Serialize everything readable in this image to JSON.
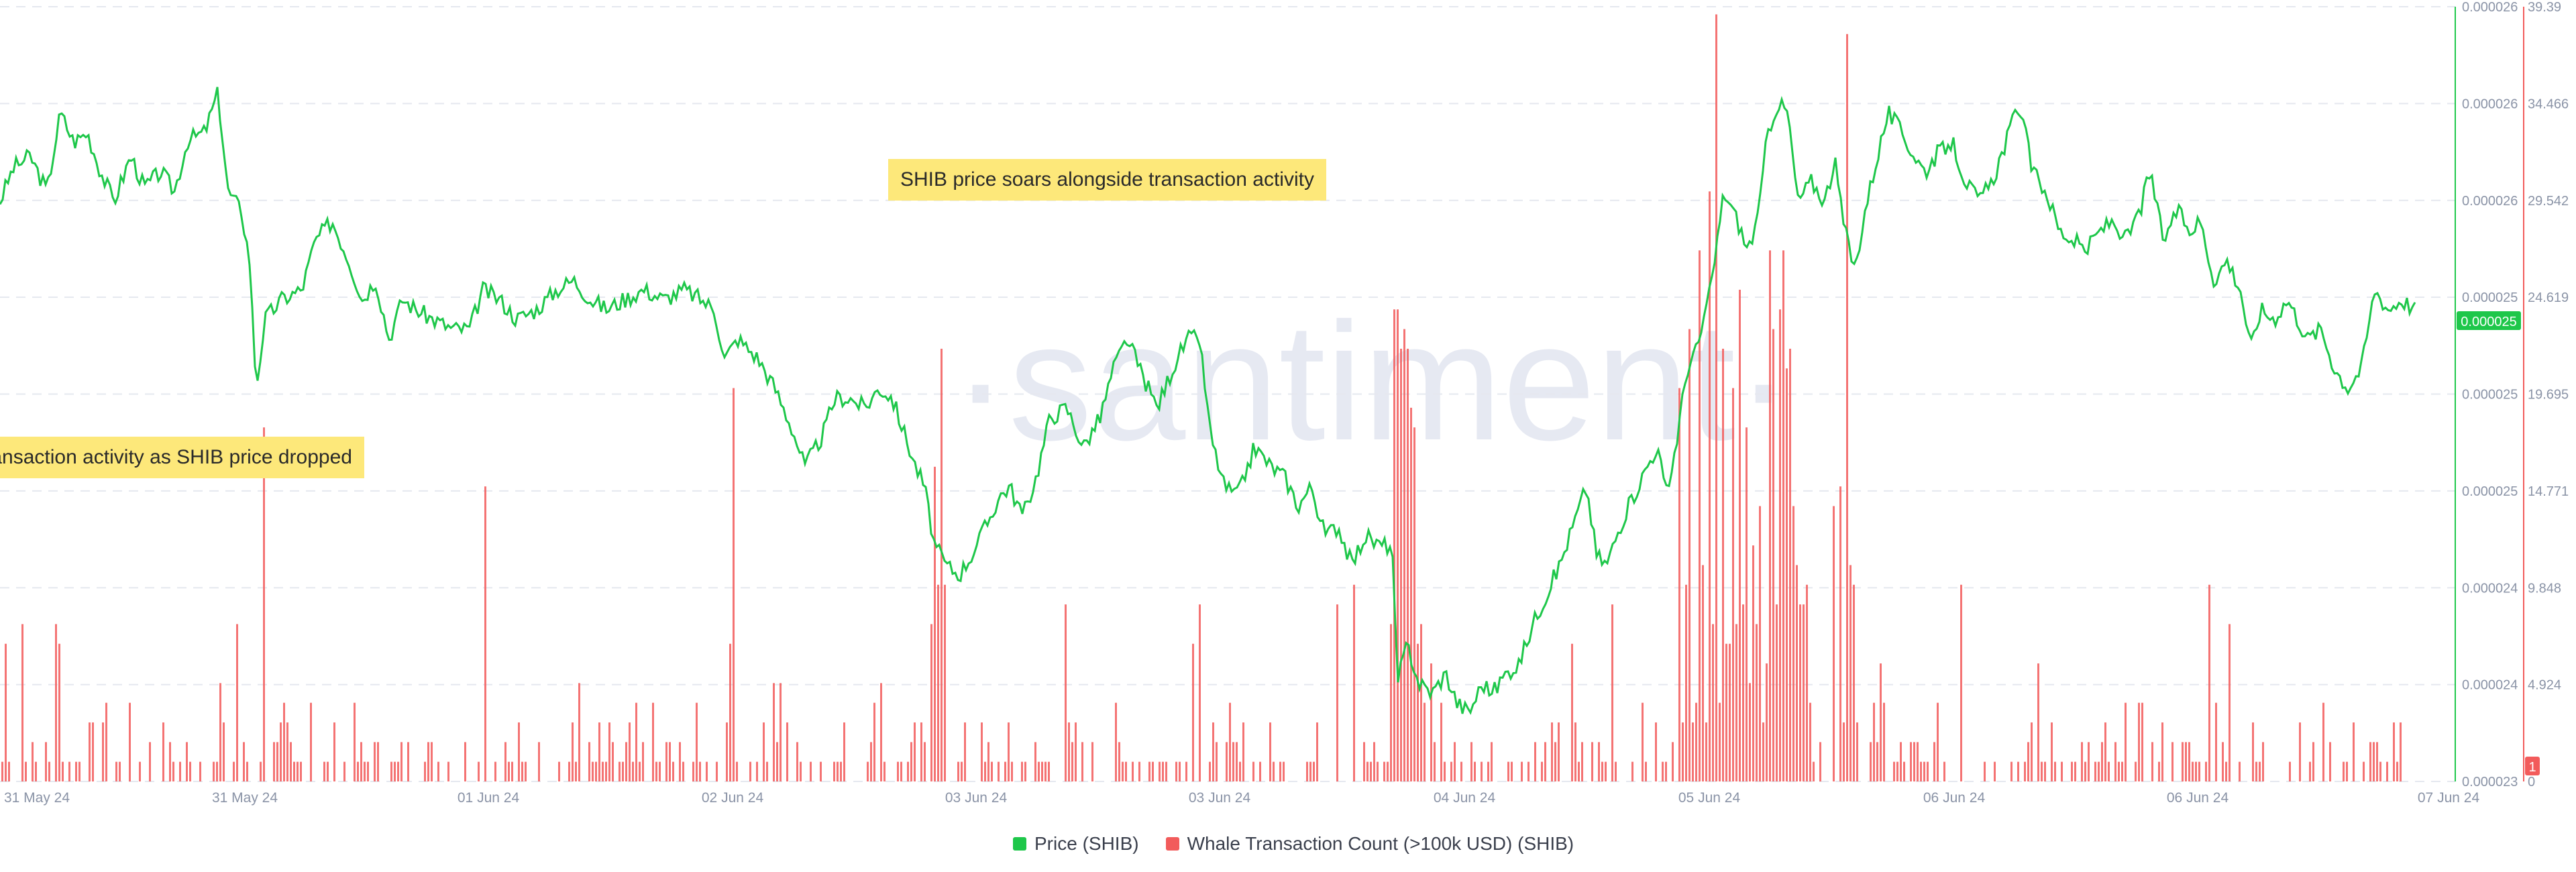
{
  "colors": {
    "price": "#1ec74a",
    "whale": "#f25b5b",
    "grid": "#e5e8ef",
    "tick": "#8a93a6",
    "price_badge": "#1ec74a",
    "whale_badge": "#f25b5b"
  },
  "watermark": "·santiment·",
  "callouts": [
    "SHIB price soars alongside transaction activity",
    "ull in transaction activity as SHIB price dropped"
  ],
  "legend": {
    "price": "Price (SHIB)",
    "whale": "Whale Transaction Count (>100k USD) (SHIB)"
  },
  "chart_data": {
    "type": "bar",
    "x_tick_labels": [
      "31 May 24",
      "31 May 24",
      "01 Jun 24",
      "02 Jun 24",
      "03 Jun 24",
      "03 Jun 24",
      "04 Jun 24",
      "05 Jun 24",
      "06 Jun 24",
      "06 Jun 24",
      "07 Jun 24"
    ],
    "price_axis": {
      "tick_labels": [
        "0.000026",
        "0.000026",
        "0.000026",
        "0.000025",
        "0.000025",
        "0.000025",
        "0.000024",
        "0.000024",
        "0.000023"
      ],
      "current_label": "0.000025"
    },
    "whale_axis": {
      "tick_labels": [
        "39.39",
        "34.466",
        "29.542",
        "24.619",
        "19.695",
        "14.771",
        "9.848",
        "4.924",
        "0"
      ],
      "current_label": "1",
      "ylim": [
        0,
        39.39
      ]
    },
    "price_anchors": [
      [
        0,
        29.5
      ],
      [
        20,
        31.2
      ],
      [
        45,
        31.8
      ],
      [
        70,
        30.0
      ],
      [
        90,
        34.0
      ],
      [
        110,
        32.5
      ],
      [
        130,
        33.0
      ],
      [
        150,
        31.0
      ],
      [
        170,
        29.5
      ],
      [
        195,
        31.8
      ],
      [
        215,
        30.2
      ],
      [
        240,
        31.0
      ],
      [
        260,
        30.0
      ],
      [
        280,
        32.6
      ],
      [
        305,
        33.0
      ],
      [
        325,
        35.0
      ],
      [
        340,
        30.0
      ],
      [
        360,
        29.0
      ],
      [
        372,
        26.5
      ],
      [
        382,
        20.0
      ],
      [
        395,
        23.5
      ],
      [
        420,
        24.5
      ],
      [
        450,
        25.0
      ],
      [
        470,
        27.5
      ],
      [
        495,
        28.5
      ],
      [
        520,
        26.5
      ],
      [
        540,
        24.5
      ],
      [
        560,
        25.5
      ],
      [
        580,
        22.5
      ],
      [
        600,
        24.5
      ],
      [
        620,
        24.0
      ],
      [
        645,
        23.5
      ],
      [
        675,
        23.0
      ],
      [
        700,
        23.0
      ],
      [
        720,
        25.0
      ],
      [
        745,
        24.5
      ],
      [
        770,
        23.5
      ],
      [
        800,
        24.0
      ],
      [
        830,
        25.0
      ],
      [
        855,
        25.5
      ],
      [
        880,
        24.5
      ],
      [
        905,
        24.0
      ],
      [
        930,
        24.5
      ],
      [
        960,
        25.0
      ],
      [
        990,
        24.5
      ],
      [
        1020,
        25.0
      ],
      [
        1045,
        24.5
      ],
      [
        1065,
        24.0
      ],
      [
        1080,
        21.5
      ],
      [
        1100,
        22.5
      ],
      [
        1130,
        21.5
      ],
      [
        1155,
        20.0
      ],
      [
        1180,
        18.0
      ],
      [
        1200,
        16.0
      ],
      [
        1225,
        17.5
      ],
      [
        1245,
        19.5
      ],
      [
        1265,
        19.5
      ],
      [
        1290,
        19.0
      ],
      [
        1310,
        20.0
      ],
      [
        1330,
        19.5
      ],
      [
        1350,
        17.5
      ],
      [
        1365,
        16.0
      ],
      [
        1378,
        15.0
      ],
      [
        1393,
        12.0
      ],
      [
        1410,
        11.0
      ],
      [
        1430,
        10.5
      ],
      [
        1448,
        11.5
      ],
      [
        1470,
        13.0
      ],
      [
        1490,
        14.5
      ],
      [
        1505,
        15.0
      ],
      [
        1525,
        13.5
      ],
      [
        1545,
        15.5
      ],
      [
        1565,
        18.5
      ],
      [
        1590,
        19.0
      ],
      [
        1615,
        17.0
      ],
      [
        1640,
        18.5
      ],
      [
        1660,
        21.0
      ],
      [
        1680,
        22.5
      ],
      [
        1705,
        20.5
      ],
      [
        1725,
        19.0
      ],
      [
        1748,
        21.0
      ],
      [
        1770,
        22.5
      ],
      [
        1788,
        22.5
      ],
      [
        1805,
        17.5
      ],
      [
        1825,
        15.0
      ],
      [
        1845,
        14.5
      ],
      [
        1870,
        17.0
      ],
      [
        1895,
        16.0
      ],
      [
        1915,
        15.5
      ],
      [
        1935,
        14.0
      ],
      [
        1955,
        15.0
      ],
      [
        1975,
        12.5
      ],
      [
        1995,
        13.0
      ],
      [
        2015,
        11.0
      ],
      [
        2035,
        12.5
      ],
      [
        2055,
        12.0
      ],
      [
        2075,
        12.0
      ],
      [
        2083,
        5.0
      ],
      [
        2098,
        7.0
      ],
      [
        2115,
        5.0
      ],
      [
        2135,
        4.5
      ],
      [
        2155,
        5.5
      ],
      [
        2172,
        4.0
      ],
      [
        2190,
        3.5
      ],
      [
        2210,
        5.0
      ],
      [
        2225,
        4.5
      ],
      [
        2245,
        5.5
      ],
      [
        2265,
        6.0
      ],
      [
        2285,
        8.0
      ],
      [
        2305,
        9.5
      ],
      [
        2325,
        11.0
      ],
      [
        2345,
        13.0
      ],
      [
        2365,
        15.0
      ],
      [
        2380,
        11.5
      ],
      [
        2395,
        11.0
      ],
      [
        2415,
        13.0
      ],
      [
        2435,
        14.5
      ],
      [
        2455,
        16.0
      ],
      [
        2470,
        17.0
      ],
      [
        2485,
        14.5
      ],
      [
        2500,
        17.5
      ],
      [
        2515,
        21.0
      ],
      [
        2530,
        22.0
      ],
      [
        2550,
        25.0
      ],
      [
        2570,
        30.0
      ],
      [
        2590,
        28.5
      ],
      [
        2605,
        27.0
      ],
      [
        2620,
        28.5
      ],
      [
        2635,
        33.0
      ],
      [
        2650,
        34.5
      ],
      [
        2665,
        34.0
      ],
      [
        2680,
        29.5
      ],
      [
        2700,
        30.5
      ],
      [
        2720,
        29.5
      ],
      [
        2735,
        31.5
      ],
      [
        2750,
        28.0
      ],
      [
        2765,
        26.0
      ],
      [
        2780,
        29.0
      ],
      [
        2800,
        32.0
      ],
      [
        2815,
        34.0
      ],
      [
        2835,
        33.0
      ],
      [
        2850,
        32.0
      ],
      [
        2870,
        31.0
      ],
      [
        2890,
        32.0
      ],
      [
        2910,
        32.5
      ],
      [
        2930,
        30.5
      ],
      [
        2950,
        29.5
      ],
      [
        2970,
        30.5
      ],
      [
        2990,
        32.5
      ],
      [
        3010,
        34.5
      ],
      [
        3030,
        31.0
      ],
      [
        3050,
        30.0
      ],
      [
        3070,
        28.0
      ],
      [
        3090,
        27.5
      ],
      [
        3110,
        27.0
      ],
      [
        3130,
        28.0
      ],
      [
        3150,
        28.5
      ],
      [
        3170,
        27.5
      ],
      [
        3190,
        29.0
      ],
      [
        3205,
        31.0
      ],
      [
        3225,
        27.5
      ],
      [
        3245,
        29.0
      ],
      [
        3265,
        28.0
      ],
      [
        3280,
        28.5
      ],
      [
        3300,
        25.5
      ],
      [
        3320,
        26.5
      ],
      [
        3340,
        25.0
      ],
      [
        3355,
        22.0
      ],
      [
        3370,
        24.0
      ],
      [
        3390,
        23.5
      ],
      [
        3410,
        24.5
      ],
      [
        3425,
        23.5
      ],
      [
        3440,
        22.5
      ],
      [
        3460,
        23.0
      ],
      [
        3480,
        21.0
      ],
      [
        3500,
        20.0
      ],
      [
        3520,
        21.0
      ],
      [
        3540,
        25.0
      ],
      [
        3560,
        24.0
      ],
      [
        3580,
        24.5
      ],
      [
        3600,
        24.0
      ]
    ],
    "whale_spikes": [
      [
        5,
        7
      ],
      [
        30,
        8
      ],
      [
        80,
        8
      ],
      [
        85,
        7
      ],
      [
        155,
        4
      ],
      [
        325,
        5
      ],
      [
        350,
        8
      ],
      [
        390,
        18
      ],
      [
        420,
        4
      ],
      [
        460,
        4
      ],
      [
        722,
        15
      ],
      [
        860,
        5
      ],
      [
        1085,
        7
      ],
      [
        1090,
        20
      ],
      [
        1148,
        5
      ],
      [
        1160,
        5
      ],
      [
        1170,
        3
      ],
      [
        1300,
        4
      ],
      [
        1310,
        5
      ],
      [
        1385,
        8
      ],
      [
        1390,
        16
      ],
      [
        1395,
        10
      ],
      [
        1400,
        22
      ],
      [
        1405,
        10
      ],
      [
        1585,
        9
      ],
      [
        1775,
        7
      ],
      [
        1785,
        9
      ],
      [
        1990,
        9
      ],
      [
        2015,
        10
      ],
      [
        2070,
        8
      ],
      [
        2075,
        24
      ],
      [
        2080,
        24
      ],
      [
        2085,
        22
      ],
      [
        2090,
        23
      ],
      [
        2095,
        22
      ],
      [
        2100,
        19
      ],
      [
        2105,
        18
      ],
      [
        2110,
        7
      ],
      [
        2115,
        8
      ],
      [
        2120,
        4
      ],
      [
        2130,
        6
      ],
      [
        2145,
        4
      ],
      [
        2340,
        7
      ],
      [
        2400,
        9
      ],
      [
        2500,
        20
      ],
      [
        2515,
        23
      ],
      [
        2530,
        27
      ],
      [
        2545,
        30
      ],
      [
        2555,
        39
      ],
      [
        2565,
        22
      ],
      [
        2580,
        20
      ],
      [
        2590,
        25
      ],
      [
        2600,
        18
      ],
      [
        2610,
        12
      ],
      [
        2620,
        14
      ],
      [
        2635,
        27
      ],
      [
        2640,
        23
      ],
      [
        2650,
        24
      ],
      [
        2655,
        27
      ],
      [
        2660,
        21
      ],
      [
        2665,
        22
      ],
      [
        2670,
        14
      ],
      [
        2675,
        11
      ],
      [
        2680,
        9
      ],
      [
        2730,
        14
      ],
      [
        2740,
        15
      ],
      [
        2750,
        38
      ],
      [
        2755,
        11
      ],
      [
        2760,
        10
      ],
      [
        2800,
        6
      ],
      [
        2805,
        4
      ],
      [
        2920,
        10
      ],
      [
        3035,
        6
      ],
      [
        3290,
        10
      ],
      [
        3300,
        4
      ],
      [
        3320,
        8
      ]
    ],
    "price_range": [
      0,
      39.39
    ],
    "grid": true,
    "legend_position": "bottom-center"
  }
}
